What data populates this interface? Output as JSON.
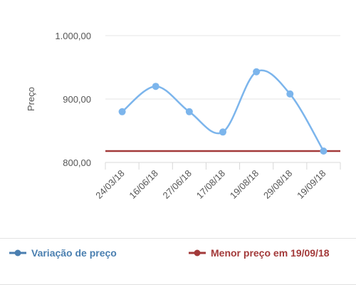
{
  "chart_data": {
    "type": "line",
    "title": "",
    "xlabel": "",
    "ylabel": "Preço",
    "ylim": [
      800,
      1000
    ],
    "yticks": [
      "800,00",
      "900,00",
      "1.000,00"
    ],
    "ytick_values": [
      800,
      900,
      1000
    ],
    "categories": [
      "24/03/18",
      "16/06/18",
      "27/06/18",
      "17/08/18",
      "19/08/18",
      "29/08/18",
      "19/09/18"
    ],
    "series": [
      {
        "name": "Variação de preço",
        "values": [
          880,
          920,
          880,
          848,
          943,
          908,
          818
        ],
        "color": "#7cb5ec",
        "legend_color": "#4a7fb0"
      },
      {
        "name": "Menor preço em 19/09/18",
        "constant": 818,
        "color": "#a33a3a"
      }
    ],
    "grid": true,
    "legend_position": "bottom"
  }
}
